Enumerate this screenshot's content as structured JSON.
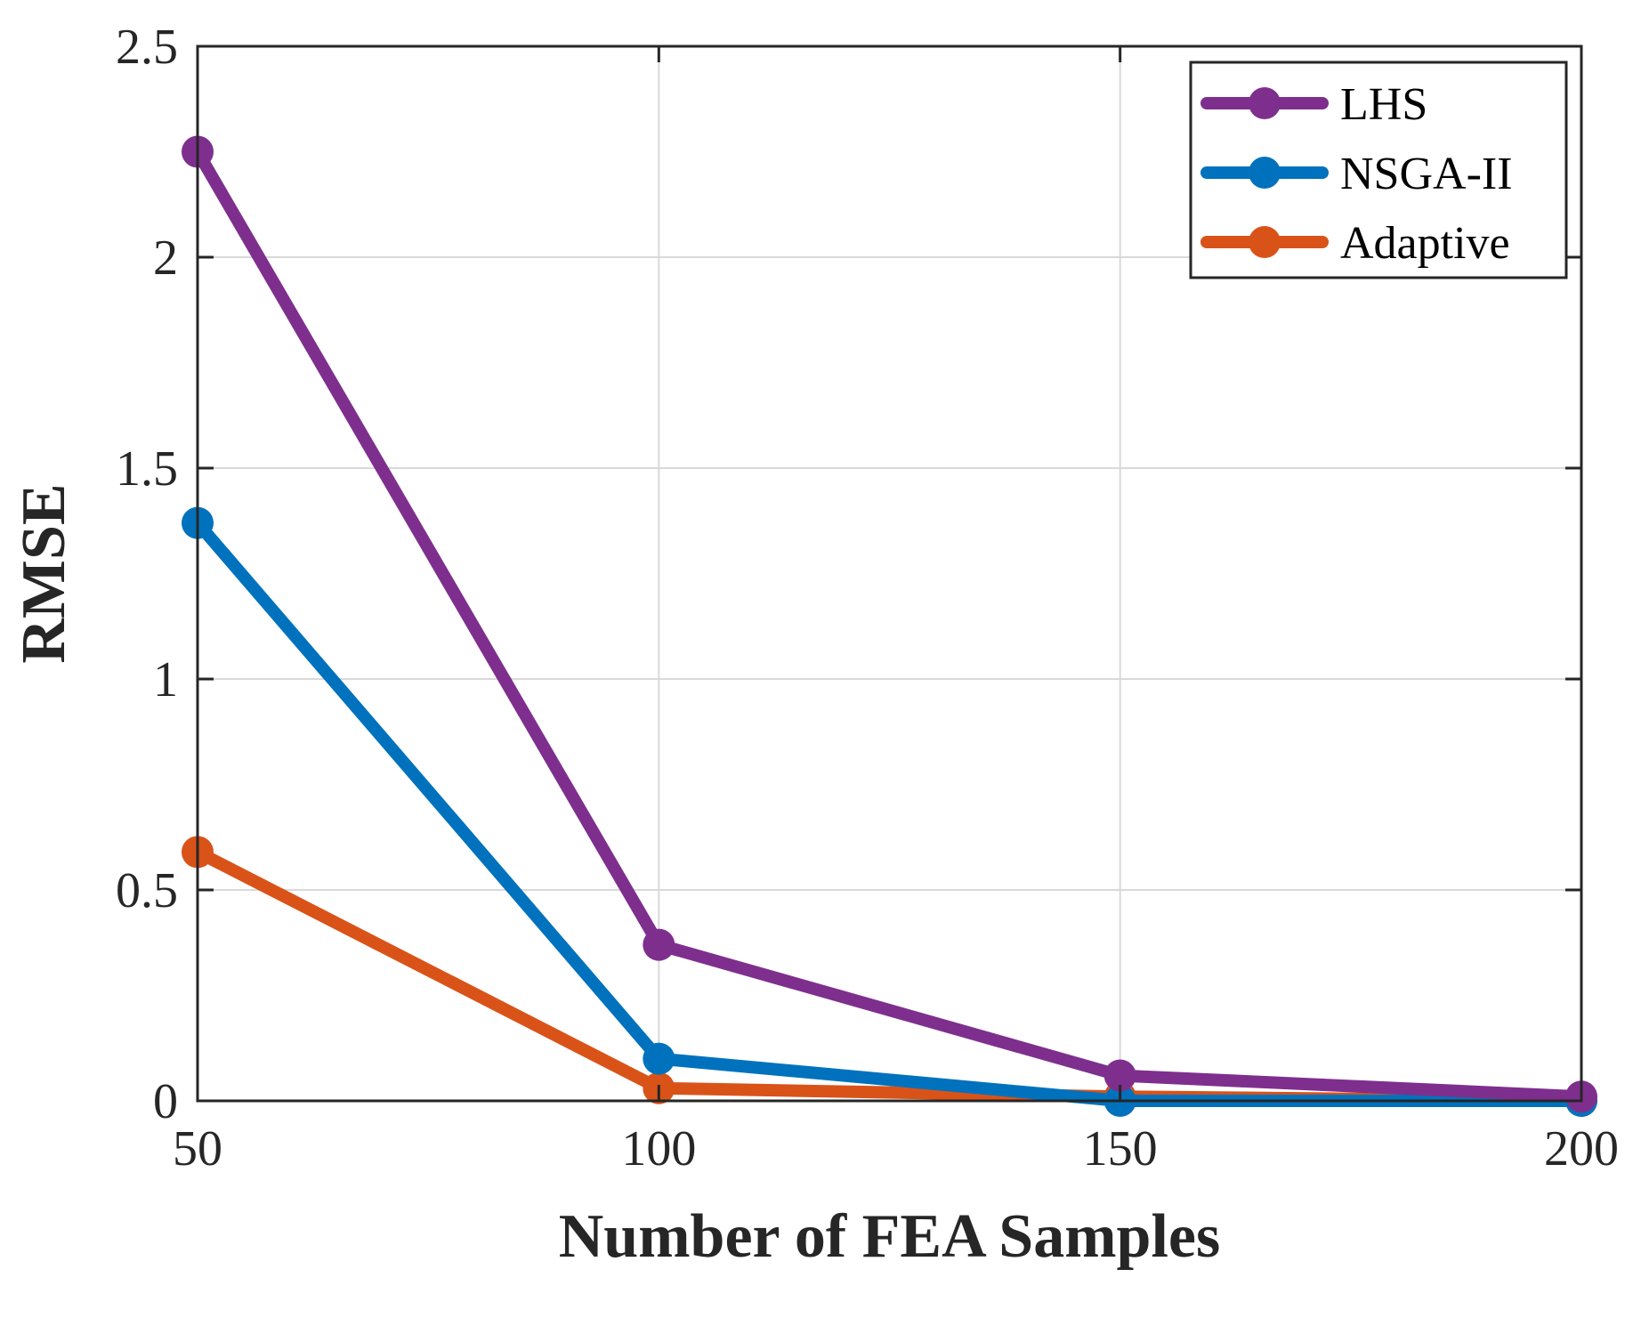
{
  "chart_data": {
    "type": "line",
    "title": "",
    "xlabel": "Number of FEA Samples",
    "ylabel": "RMSE",
    "x": [
      50,
      100,
      150,
      200
    ],
    "xlim": [
      50,
      200
    ],
    "ylim": [
      0,
      2.5
    ],
    "xticks": [
      50,
      100,
      150,
      200
    ],
    "yticks": [
      0,
      0.5,
      1,
      1.5,
      2,
      2.5
    ],
    "xtick_labels": [
      "50",
      "100",
      "150",
      "200"
    ],
    "ytick_labels": [
      "0",
      "0.5",
      "1",
      "1.5",
      "2",
      "2.5"
    ],
    "grid": true,
    "legend_position": "top-right",
    "series": [
      {
        "name": "LHS",
        "color": "#7E2F8E",
        "values": [
          2.25,
          0.37,
          0.06,
          0.01
        ]
      },
      {
        "name": "NSGA-II",
        "color": "#0072BD",
        "values": [
          1.37,
          0.1,
          0.0,
          0.0
        ]
      },
      {
        "name": "Adaptive",
        "color": "#D95319",
        "values": [
          0.59,
          0.03,
          0.01,
          0.0
        ]
      }
    ]
  }
}
